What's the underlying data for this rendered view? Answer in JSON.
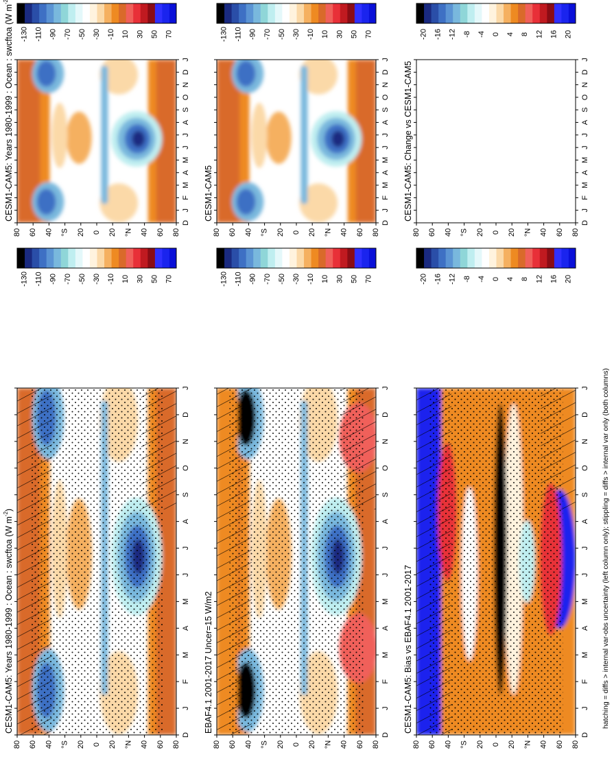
{
  "footer_note": "hatching = diffs > internal var-obs uncertainty (left column only); stippling = diffs > internal var only (both columns)",
  "month_ticks": [
    "D",
    "J",
    "F",
    "M",
    "A",
    "M",
    "J",
    "J",
    "A",
    "S",
    "O",
    "N",
    "D",
    "J"
  ],
  "lat_ticks": [
    "80",
    "60",
    "40",
    "°N",
    "20",
    "0",
    "20",
    "°S",
    "40",
    "60",
    "80"
  ],
  "colors": {
    "mean_scale": [
      "#0a10d8",
      "#1a24ee",
      "#3030ff",
      "#8a0c14",
      "#c01a20",
      "#e83038",
      "#f0605a",
      "#d96a2a",
      "#ee8a22",
      "#f5b060",
      "#fbd9a8",
      "#fff3de",
      "#ffffff",
      "#e4f8fa",
      "#bfeef0",
      "#8fd6d8",
      "#79b8dd",
      "#5b94d4",
      "#3e70c4",
      "#2a4ea8",
      "#1a2a80",
      "#000000"
    ],
    "diff_scale": [
      "#0a10d8",
      "#1a24ee",
      "#3030ff",
      "#8a0c14",
      "#c01a20",
      "#e83038",
      "#f0605a",
      "#d96a2a",
      "#ee8a22",
      "#f5b060",
      "#fbd9a8",
      "#fff3de",
      "#ffffff",
      "#e4f8fa",
      "#bfeef0",
      "#8fd6d8",
      "#79b8dd",
      "#5b94d4",
      "#3e70c4",
      "#2a4ea8",
      "#1a2a80",
      "#000000"
    ],
    "orange": "#d96a2a",
    "tan": "#fbd9a8",
    "blue": "#3e70c4",
    "navy": "#1a2a80",
    "red": "#e83038",
    "deep_blue": "#1a24ee"
  },
  "chart_data": [
    {
      "id": "top-left",
      "type": "heatmap",
      "title": "CESM1-CAM5: Years 1980-1999 : Ocean : swcftoa (W m",
      "title_sup": "-2",
      "title_end": ")",
      "x": "month (Dec to Jan, repeated at ends)",
      "y": "latitude (80°N to 80°S)",
      "ylim": [
        -80,
        80
      ],
      "colorbar_labels": [
        "70",
        "50",
        "30",
        "10",
        "-10",
        "-30",
        "-50",
        "-70",
        "-90",
        "-110",
        "-130"
      ],
      "hatching": true,
      "stippling": true
    },
    {
      "id": "top-right",
      "type": "heatmap",
      "title": "CESM1-CAM5: Years 1980-1999 : Ocean : swcftoa (W m",
      "title_sup": "-2",
      "title_end": ")",
      "ylim": [
        -80,
        80
      ],
      "colorbar_labels": [
        "70",
        "50",
        "30",
        "10",
        "-10",
        "-30",
        "-50",
        "-70",
        "-90",
        "-110",
        "-130"
      ],
      "hatching": false,
      "stippling": false
    },
    {
      "id": "mid-left",
      "type": "heatmap",
      "title": "EBAF4.1 2001-2017 Uncer=15 W/m2",
      "title_sup": "",
      "title_end": "",
      "ylim": [
        -80,
        80
      ],
      "colorbar_labels": [
        "70",
        "50",
        "30",
        "10",
        "-10",
        "-30",
        "-50",
        "-70",
        "-90",
        "-110",
        "-130"
      ],
      "hatching": true,
      "stippling": true
    },
    {
      "id": "mid-right",
      "type": "heatmap",
      "title": "CESM1-CAM5",
      "title_sup": "",
      "title_end": "",
      "ylim": [
        -80,
        80
      ],
      "colorbar_labels": [
        "70",
        "50",
        "30",
        "10",
        "-10",
        "-30",
        "-50",
        "-70",
        "-90",
        "-110",
        "-130"
      ],
      "hatching": false,
      "stippling": false
    },
    {
      "id": "bottom-left",
      "type": "heatmap",
      "title": "CESM1-CAM5: Bias vs EBAF4.1 2001-2017",
      "title_sup": "",
      "title_end": "",
      "ylim": [
        -80,
        80
      ],
      "colorbar_labels": [
        "20",
        "16",
        "12",
        "8",
        "4",
        "0",
        "-4",
        "-8",
        "-12",
        "-16",
        "-20"
      ],
      "hatching": true,
      "stippling": true
    },
    {
      "id": "bottom-right",
      "type": "heatmap",
      "title": "CESM1-CAM5: Change vs CESM1-CAM5",
      "title_sup": "",
      "title_end": "",
      "ylim": [
        -80,
        80
      ],
      "colorbar_labels": [
        "20",
        "16",
        "12",
        "8",
        "4",
        "0",
        "-4",
        "-8",
        "-12",
        "-16",
        "-20"
      ],
      "hatching": false,
      "stippling": false,
      "empty": true
    }
  ]
}
